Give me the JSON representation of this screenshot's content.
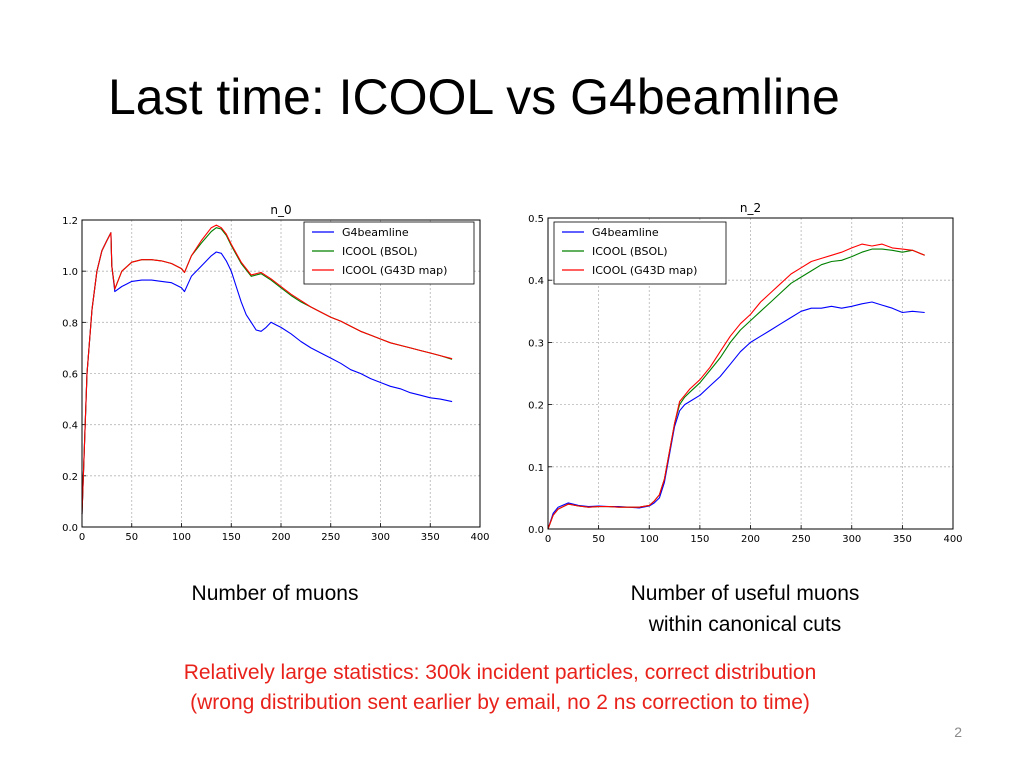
{
  "slide": {
    "title": "Last time: ICOOL vs G4beamline",
    "caption_left": "Number of muons",
    "caption_right_line1": "Number of useful muons",
    "caption_right_line2": "within canonical cuts",
    "note_line1": "Relatively large statistics: 300k incident particles, correct distribution",
    "note_line2": "(wrong distribution sent earlier by email, no 2 ns correction to time)",
    "page_number": "2"
  },
  "chart_data": [
    {
      "type": "line",
      "title": "n_0",
      "xlabel": "",
      "ylabel": "",
      "xlim": [
        0,
        400
      ],
      "ylim": [
        0,
        1.2
      ],
      "xticks": [
        "0",
        "50",
        "100",
        "150",
        "200",
        "250",
        "300",
        "350",
        "400"
      ],
      "yticks": [
        "0.0",
        "0.2",
        "0.4",
        "0.6",
        "0.8",
        "1.0",
        "1.2"
      ],
      "grid": true,
      "legend_position": "top-right",
      "series": [
        {
          "name": "G4beamline",
          "color": "#0000ff",
          "x": [
            0,
            5,
            10,
            15,
            20,
            25,
            29,
            30,
            33,
            40,
            50,
            60,
            70,
            80,
            90,
            100,
            103,
            110,
            120,
            130,
            135,
            140,
            145,
            150,
            155,
            160,
            165,
            170,
            175,
            180,
            185,
            190,
            195,
            200,
            210,
            220,
            230,
            240,
            250,
            260,
            270,
            280,
            290,
            300,
            310,
            320,
            330,
            340,
            350,
            360,
            372
          ],
          "y": [
            0.05,
            0.6,
            0.85,
            1.0,
            1.08,
            1.12,
            1.15,
            1.02,
            0.92,
            0.94,
            0.96,
            0.965,
            0.965,
            0.96,
            0.955,
            0.935,
            0.92,
            0.98,
            1.02,
            1.06,
            1.075,
            1.07,
            1.04,
            1.0,
            0.94,
            0.88,
            0.83,
            0.8,
            0.77,
            0.765,
            0.78,
            0.8,
            0.79,
            0.78,
            0.755,
            0.725,
            0.7,
            0.68,
            0.66,
            0.64,
            0.615,
            0.6,
            0.58,
            0.565,
            0.55,
            0.54,
            0.525,
            0.515,
            0.505,
            0.5,
            0.49
          ]
        },
        {
          "name": "ICOOL (BSOL)",
          "color": "#008000",
          "x": [
            0,
            5,
            10,
            15,
            20,
            25,
            29,
            30,
            33,
            40,
            50,
            60,
            70,
            80,
            90,
            100,
            103,
            110,
            120,
            130,
            135,
            140,
            145,
            150,
            160,
            170,
            180,
            190,
            200,
            210,
            220,
            230,
            240,
            250,
            260,
            270,
            280,
            290,
            300,
            310,
            320,
            330,
            340,
            350,
            360,
            372
          ],
          "y": [
            0.05,
            0.6,
            0.85,
            1.0,
            1.08,
            1.12,
            1.15,
            1.02,
            0.93,
            1.0,
            1.035,
            1.045,
            1.045,
            1.04,
            1.03,
            1.01,
            0.995,
            1.06,
            1.11,
            1.155,
            1.17,
            1.165,
            1.14,
            1.1,
            1.03,
            0.98,
            0.99,
            0.965,
            0.935,
            0.905,
            0.88,
            0.86,
            0.84,
            0.82,
            0.805,
            0.785,
            0.765,
            0.75,
            0.735,
            0.72,
            0.71,
            0.7,
            0.69,
            0.68,
            0.67,
            0.655
          ]
        },
        {
          "name": "ICOOL (G43D map)",
          "color": "#ff0000",
          "x": [
            0,
            5,
            10,
            15,
            20,
            25,
            29,
            30,
            33,
            40,
            50,
            60,
            70,
            80,
            90,
            100,
            103,
            110,
            120,
            130,
            135,
            140,
            145,
            150,
            160,
            170,
            180,
            190,
            200,
            210,
            220,
            230,
            240,
            250,
            260,
            270,
            280,
            290,
            300,
            310,
            320,
            330,
            340,
            350,
            360,
            372
          ],
          "y": [
            0.05,
            0.6,
            0.85,
            1.0,
            1.08,
            1.12,
            1.15,
            1.02,
            0.93,
            1.0,
            1.035,
            1.045,
            1.045,
            1.04,
            1.03,
            1.01,
            0.995,
            1.06,
            1.12,
            1.17,
            1.18,
            1.17,
            1.145,
            1.105,
            1.035,
            0.985,
            0.995,
            0.97,
            0.94,
            0.91,
            0.885,
            0.86,
            0.84,
            0.82,
            0.805,
            0.785,
            0.765,
            0.75,
            0.735,
            0.72,
            0.71,
            0.7,
            0.69,
            0.68,
            0.67,
            0.658
          ]
        }
      ]
    },
    {
      "type": "line",
      "title": "n_2",
      "xlabel": "",
      "ylabel": "",
      "xlim": [
        0,
        400
      ],
      "ylim": [
        0,
        0.5
      ],
      "xticks": [
        "0",
        "50",
        "100",
        "150",
        "200",
        "250",
        "300",
        "350",
        "400"
      ],
      "yticks": [
        "0.0",
        "0.1",
        "0.2",
        "0.3",
        "0.4",
        "0.5"
      ],
      "grid": true,
      "legend_position": "top-left",
      "series": [
        {
          "name": "G4beamline",
          "color": "#0000ff",
          "x": [
            0,
            5,
            10,
            20,
            30,
            40,
            50,
            60,
            70,
            80,
            90,
            100,
            105,
            110,
            115,
            120,
            125,
            130,
            135,
            140,
            150,
            160,
            170,
            180,
            190,
            200,
            210,
            220,
            230,
            240,
            250,
            260,
            270,
            280,
            290,
            300,
            310,
            320,
            330,
            340,
            350,
            360,
            372
          ],
          "y": [
            0.0,
            0.025,
            0.035,
            0.042,
            0.038,
            0.036,
            0.037,
            0.036,
            0.036,
            0.035,
            0.034,
            0.037,
            0.042,
            0.05,
            0.075,
            0.12,
            0.165,
            0.19,
            0.2,
            0.205,
            0.215,
            0.23,
            0.245,
            0.265,
            0.285,
            0.3,
            0.31,
            0.32,
            0.33,
            0.34,
            0.35,
            0.355,
            0.355,
            0.358,
            0.355,
            0.358,
            0.362,
            0.365,
            0.36,
            0.355,
            0.348,
            0.35,
            0.348
          ]
        },
        {
          "name": "ICOOL (BSOL)",
          "color": "#008000",
          "x": [
            0,
            5,
            10,
            20,
            30,
            40,
            50,
            60,
            70,
            80,
            90,
            100,
            105,
            110,
            115,
            120,
            125,
            130,
            135,
            140,
            150,
            160,
            170,
            180,
            190,
            200,
            210,
            220,
            230,
            240,
            250,
            260,
            270,
            280,
            290,
            300,
            310,
            320,
            330,
            340,
            350,
            360,
            372
          ],
          "y": [
            0.0,
            0.022,
            0.032,
            0.04,
            0.037,
            0.035,
            0.036,
            0.036,
            0.035,
            0.035,
            0.035,
            0.038,
            0.045,
            0.055,
            0.08,
            0.125,
            0.17,
            0.2,
            0.212,
            0.22,
            0.235,
            0.255,
            0.275,
            0.3,
            0.32,
            0.335,
            0.35,
            0.365,
            0.38,
            0.395,
            0.405,
            0.415,
            0.425,
            0.43,
            0.432,
            0.438,
            0.445,
            0.45,
            0.45,
            0.448,
            0.445,
            0.448,
            0.44
          ]
        },
        {
          "name": "ICOOL (G43D map)",
          "color": "#ff0000",
          "x": [
            0,
            5,
            10,
            20,
            30,
            40,
            50,
            60,
            70,
            80,
            90,
            100,
            105,
            110,
            115,
            120,
            125,
            130,
            135,
            140,
            150,
            160,
            170,
            180,
            190,
            200,
            210,
            220,
            230,
            240,
            250,
            260,
            270,
            280,
            290,
            300,
            310,
            320,
            330,
            340,
            350,
            360,
            372
          ],
          "y": [
            0.0,
            0.022,
            0.032,
            0.04,
            0.037,
            0.035,
            0.036,
            0.036,
            0.035,
            0.035,
            0.035,
            0.038,
            0.045,
            0.055,
            0.08,
            0.125,
            0.17,
            0.205,
            0.215,
            0.225,
            0.24,
            0.26,
            0.285,
            0.31,
            0.33,
            0.345,
            0.365,
            0.38,
            0.395,
            0.41,
            0.42,
            0.43,
            0.435,
            0.44,
            0.445,
            0.452,
            0.458,
            0.455,
            0.458,
            0.452,
            0.45,
            0.448,
            0.44
          ]
        }
      ]
    }
  ]
}
